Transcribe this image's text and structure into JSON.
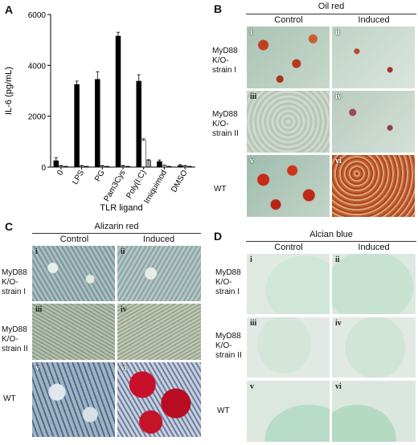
{
  "panels": {
    "A": {
      "letter": "A"
    },
    "B": {
      "letter": "B",
      "stain": "Oil red",
      "col1": "Control",
      "col2": "Induced"
    },
    "C": {
      "letter": "C",
      "stain": "Alizarin red",
      "col1": "Control",
      "col2": "Induced"
    },
    "D": {
      "letter": "D",
      "stain": "Alcian blue",
      "col1": "Control",
      "col2": "Induced"
    }
  },
  "row_labels": {
    "strain1": [
      "MyD88",
      "K/O-",
      "strain I"
    ],
    "strain2": [
      "MyD88",
      "K/O-",
      "strain II"
    ],
    "wt": "WT"
  },
  "tiles": [
    "i",
    "ii",
    "iii",
    "iv",
    "v",
    "vi"
  ],
  "chart_data": {
    "type": "bar",
    "xlabel": "TLR ligand",
    "ylabel": "IL-6 (pg/mL)",
    "ylim": [
      0,
      6000
    ],
    "yticks": [
      "0",
      "2000",
      "4000",
      "6000"
    ],
    "categories": [
      "0",
      "LPS",
      "PG",
      "Pam3Cys",
      "Poly(I:C)",
      "Imiquimod",
      "DMSO"
    ],
    "series": [
      {
        "values": [
          250,
          3250,
          3450,
          5150,
          3380,
          220,
          60
        ],
        "errors": [
          120,
          130,
          300,
          150,
          250,
          60,
          40
        ],
        "color": "#000000"
      },
      {
        "values": [
          40,
          40,
          40,
          40,
          1050,
          60,
          40
        ],
        "errors": [
          20,
          20,
          20,
          20,
          60,
          20,
          20
        ],
        "color": "#ffffff"
      },
      {
        "values": [
          20,
          20,
          20,
          20,
          260,
          20,
          20
        ],
        "errors": [
          10,
          10,
          10,
          10,
          30,
          10,
          10
        ],
        "color": "#9a9a9a"
      }
    ]
  }
}
